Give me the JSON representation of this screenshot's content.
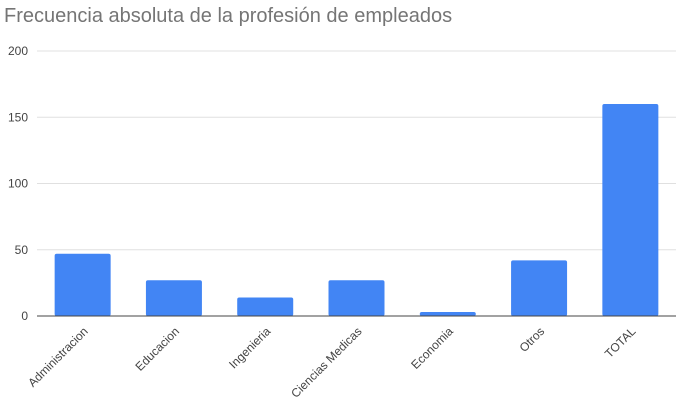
{
  "chart_data": {
    "type": "bar",
    "title": "Frecuencia absoluta de la profesión de empleados",
    "xlabel": "",
    "ylabel": "",
    "categories": [
      "Administracion",
      "Educacion",
      "Ingenieria",
      "Ciencias Medicas",
      "Economia",
      "Otros",
      "TOTAL"
    ],
    "values": [
      47,
      27,
      14,
      27,
      3,
      42,
      160
    ],
    "ylim": [
      0,
      200
    ],
    "yticks": [
      0,
      50,
      100,
      150,
      200
    ],
    "grid": true,
    "legend": "none",
    "bar_color": "#4285f4",
    "gridline_color": "#e0e0e0",
    "axis_color": "#444444"
  }
}
